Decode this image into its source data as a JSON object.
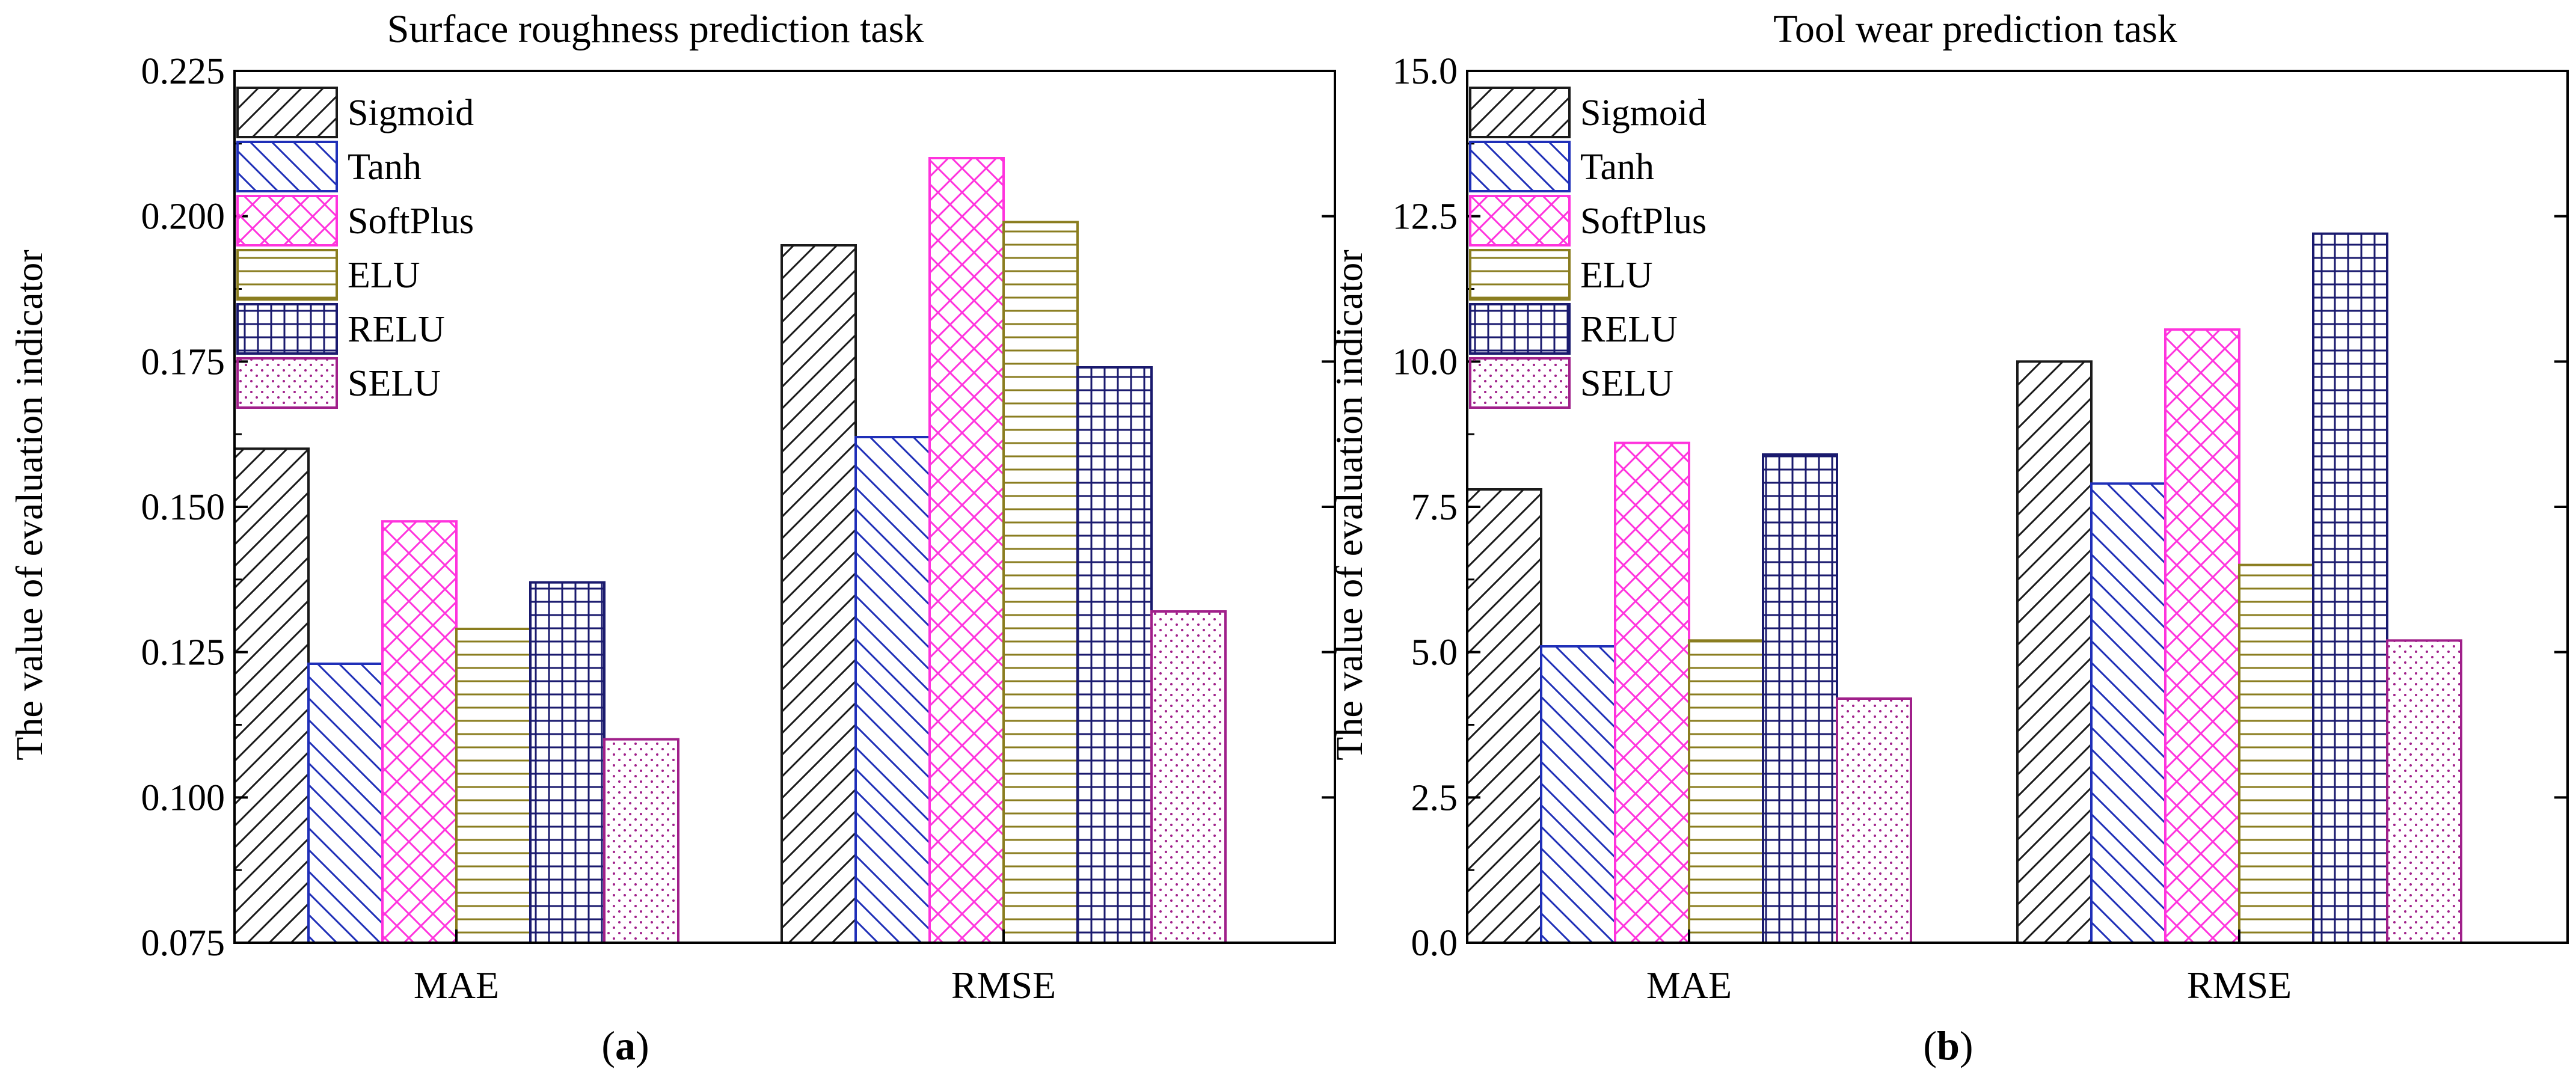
{
  "figure": {
    "panel_a_label": "a",
    "panel_b_label": "b",
    "paren_open": "(",
    "paren_close": ")"
  },
  "series_styles": [
    {
      "name": "Sigmoid",
      "color": "#1a1a1a",
      "pattern": "diag-right"
    },
    {
      "name": "Tanh",
      "color": "#1f2fb8",
      "pattern": "diag-left"
    },
    {
      "name": "SoftPlus",
      "color": "#ff33dd",
      "pattern": "cross"
    },
    {
      "name": "ELU",
      "color": "#8a7d1f",
      "pattern": "horizontal"
    },
    {
      "name": "RELU",
      "color": "#1a1a6e",
      "pattern": "grid"
    },
    {
      "name": "SELU",
      "color": "#a0208a",
      "pattern": "dots"
    }
  ],
  "chart_data": [
    {
      "type": "bar",
      "title": "Surface roughness prediction task",
      "xlabel": "",
      "ylabel": "The value of evaluation indicator",
      "categories": [
        "MAE",
        "RMSE"
      ],
      "ylim": [
        0.075,
        0.225
      ],
      "yticks": [
        "0.075",
        "0.100",
        "0.125",
        "0.150",
        "0.175",
        "0.200",
        "0.225"
      ],
      "legend_position": "top-left",
      "series": [
        {
          "name": "Sigmoid",
          "values": [
            0.16,
            0.195
          ]
        },
        {
          "name": "Tanh",
          "values": [
            0.123,
            0.162
          ]
        },
        {
          "name": "SoftPlus",
          "values": [
            0.1475,
            0.21
          ]
        },
        {
          "name": "ELU",
          "values": [
            0.129,
            0.199
          ]
        },
        {
          "name": "RELU",
          "values": [
            0.137,
            0.174
          ]
        },
        {
          "name": "SELU",
          "values": [
            0.11,
            0.132
          ]
        }
      ]
    },
    {
      "type": "bar",
      "title": "Tool wear prediction task",
      "xlabel": "",
      "ylabel": "The value of evaluation indicator",
      "categories": [
        "MAE",
        "RMSE"
      ],
      "ylim": [
        0,
        15
      ],
      "yticks": [
        "0.0",
        "2.5",
        "5.0",
        "7.5",
        "10.0",
        "12.5",
        "15.0"
      ],
      "legend_position": "top-left",
      "series": [
        {
          "name": "Sigmoid",
          "values": [
            7.8,
            10.0
          ]
        },
        {
          "name": "Tanh",
          "values": [
            5.1,
            7.9
          ]
        },
        {
          "name": "SoftPlus",
          "values": [
            8.6,
            10.55
          ]
        },
        {
          "name": "ELU",
          "values": [
            5.2,
            6.5
          ]
        },
        {
          "name": "RELU",
          "values": [
            8.4,
            12.2
          ]
        },
        {
          "name": "SELU",
          "values": [
            4.2,
            5.2
          ]
        }
      ]
    }
  ]
}
